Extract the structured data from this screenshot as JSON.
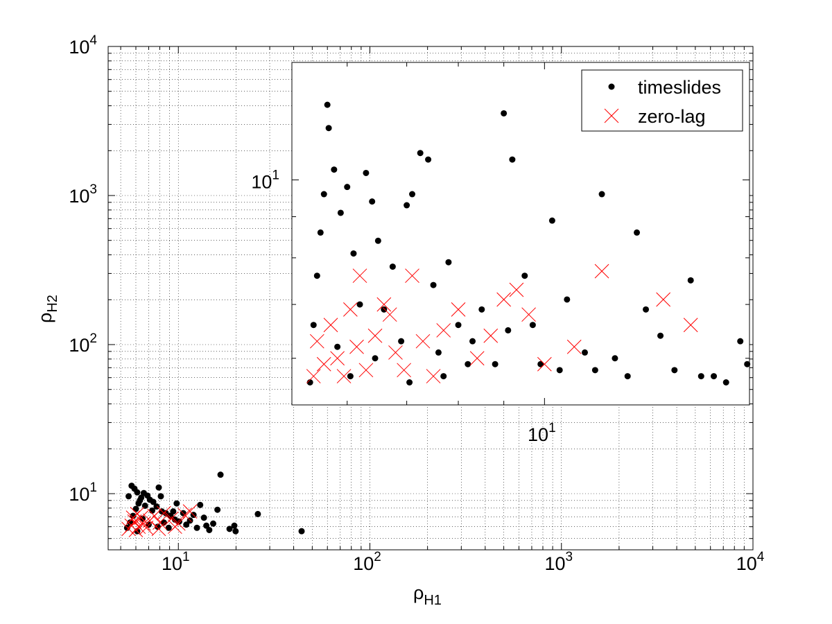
{
  "chart_data": [
    {
      "type": "scatter",
      "title": "",
      "xlabel_base": "ρ",
      "xlabel_sub": "H1",
      "ylabel_base": "ρ",
      "ylabel_sub": "H2",
      "xscale": "log",
      "yscale": "log",
      "xlim": [
        4.3,
        10000
      ],
      "ylim": [
        4.2,
        10000
      ],
      "grid": true,
      "x_ticks": [
        {
          "base": "10",
          "exp": "1",
          "value": 10
        },
        {
          "base": "10",
          "exp": "2",
          "value": 100
        },
        {
          "base": "10",
          "exp": "3",
          "value": 1000
        },
        {
          "base": "10",
          "exp": "4",
          "value": 10000
        }
      ],
      "y_ticks": [
        {
          "base": "10",
          "exp": "1",
          "value": 10
        },
        {
          "base": "10",
          "exp": "2",
          "value": 100
        },
        {
          "base": "10",
          "exp": "3",
          "value": 1000
        },
        {
          "base": "10",
          "exp": "4",
          "value": 10000
        }
      ],
      "series": [
        {
          "name": "timeslides",
          "marker": "dot",
          "color": "#000000",
          "points": [
            [
              5.4,
              5.9
            ],
            [
              5.6,
              6.4
            ],
            [
              5.8,
              7.1
            ],
            [
              6.0,
              7.9
            ],
            [
              6.2,
              8.6
            ],
            [
              6.4,
              9.4
            ],
            [
              6.1,
              10.2
            ],
            [
              5.7,
              11.3
            ],
            [
              5.9,
              10.8
            ],
            [
              6.6,
              10.1
            ],
            [
              6.9,
              9.7
            ],
            [
              7.1,
              9.1
            ],
            [
              7.4,
              8.8
            ],
            [
              7.7,
              8.2
            ],
            [
              7.9,
              11.0
            ],
            [
              8.2,
              7.6
            ],
            [
              8.6,
              7.4
            ],
            [
              9.1,
              7.1
            ],
            [
              9.6,
              6.7
            ],
            [
              10.1,
              6.5
            ],
            [
              11.0,
              6.2
            ],
            [
              12.0,
              7.2
            ],
            [
              13.0,
              8.4
            ],
            [
              14.0,
              6.1
            ],
            [
              15.2,
              6.3
            ],
            [
              16.0,
              7.8
            ],
            [
              16.6,
              13.4
            ],
            [
              18.5,
              5.8
            ],
            [
              19.6,
              6.1
            ],
            [
              19.9,
              5.6
            ],
            [
              26.0,
              7.3
            ],
            [
              44.0,
              5.6
            ],
            [
              6.5,
              6.8
            ],
            [
              7.0,
              6.2
            ],
            [
              7.8,
              6.0
            ],
            [
              8.9,
              5.9
            ],
            [
              9.4,
              7.6
            ],
            [
              10.6,
              7.4
            ],
            [
              12.5,
              5.9
            ],
            [
              14.5,
              5.7
            ],
            [
              5.5,
              9.6
            ],
            [
              6.3,
              9.0
            ],
            [
              6.7,
              8.3
            ],
            [
              7.3,
              7.7
            ],
            [
              8.1,
              9.6
            ],
            [
              9.8,
              8.6
            ],
            [
              11.5,
              6.6
            ],
            [
              13.6,
              6.9
            ],
            [
              6.1,
              5.6
            ],
            [
              8.4,
              6.4
            ]
          ]
        },
        {
          "name": "zero-lag",
          "marker": "x",
          "color": "#ff0000",
          "points": [
            [
              5.5,
              5.8
            ],
            [
              5.7,
              6.1
            ],
            [
              5.9,
              6.5
            ],
            [
              6.0,
              5.7
            ],
            [
              6.2,
              6.0
            ],
            [
              6.4,
              6.9
            ],
            [
              6.6,
              6.3
            ],
            [
              6.8,
              5.9
            ],
            [
              7.1,
              6.6
            ],
            [
              7.5,
              7.1
            ],
            [
              8.0,
              6.4
            ],
            [
              8.4,
              7.4
            ],
            [
              9.2,
              6.8
            ],
            [
              10.0,
              6.3
            ],
            [
              10.8,
              7.2
            ],
            [
              11.5,
              7.6
            ],
            [
              9.6,
              6.0
            ],
            [
              7.9,
              5.8
            ],
            [
              6.1,
              7.3
            ],
            [
              5.8,
              6.9
            ]
          ]
        }
      ],
      "legend": {
        "placement": "top-right",
        "entries": [
          "timeslides",
          "zero-lag"
        ]
      }
    },
    {
      "type": "scatter",
      "role": "inset",
      "xscale": "log",
      "yscale": "log",
      "xlim": [
        5.2,
        17
      ],
      "ylim": [
        5.25,
        14
      ],
      "grid": false,
      "x_ticks": [
        {
          "base": "10",
          "exp": "1",
          "value": 10
        }
      ],
      "y_ticks": [
        {
          "base": "10",
          "exp": "1",
          "value": 10
        }
      ],
      "series": [
        {
          "name": "timeslides",
          "marker": "dot",
          "color": "#000000",
          "points": [
            [
              5.45,
              5.6
            ],
            [
              5.5,
              6.6
            ],
            [
              5.55,
              7.6
            ],
            [
              5.6,
              8.6
            ],
            [
              5.65,
              9.6
            ],
            [
              5.7,
              12.4
            ],
            [
              5.72,
              11.6
            ],
            [
              5.8,
              10.3
            ],
            [
              5.9,
              9.1
            ],
            [
              6.0,
              9.8
            ],
            [
              6.1,
              8.1
            ],
            [
              6.2,
              7.0
            ],
            [
              6.3,
              10.2
            ],
            [
              6.4,
              9.4
            ],
            [
              6.5,
              8.4
            ],
            [
              6.6,
              6.9
            ],
            [
              6.75,
              7.8
            ],
            [
              6.9,
              6.3
            ],
            [
              7.0,
              9.3
            ],
            [
              7.1,
              9.6
            ],
            [
              7.25,
              10.8
            ],
            [
              7.4,
              10.6
            ],
            [
              7.5,
              7.4
            ],
            [
              7.6,
              6.1
            ],
            [
              7.8,
              7.9
            ],
            [
              8.0,
              6.6
            ],
            [
              8.2,
              5.9
            ],
            [
              8.5,
              6.9
            ],
            [
              8.8,
              5.9
            ],
            [
              9.0,
              12.1
            ],
            [
              9.2,
              10.6
            ],
            [
              9.5,
              7.6
            ],
            [
              9.7,
              6.6
            ],
            [
              9.9,
              5.9
            ],
            [
              10.2,
              8.9
            ],
            [
              10.6,
              7.1
            ],
            [
              11.1,
              6.1
            ],
            [
              11.4,
              5.8
            ],
            [
              11.6,
              9.6
            ],
            [
              12.0,
              6.0
            ],
            [
              12.4,
              5.7
            ],
            [
              12.7,
              8.6
            ],
            [
              13.5,
              6.4
            ],
            [
              14.0,
              5.8
            ],
            [
              14.6,
              7.5
            ],
            [
              15.0,
              5.7
            ],
            [
              15.5,
              5.7
            ],
            [
              16.0,
              5.6
            ],
            [
              16.4,
              13.3
            ],
            [
              16.6,
              6.3
            ],
            [
              16.9,
              5.9
            ],
            [
              5.85,
              6.2
            ],
            [
              6.05,
              5.7
            ],
            [
              6.45,
              6.0
            ],
            [
              7.05,
              5.6
            ],
            [
              7.7,
              5.7
            ],
            [
              8.3,
              6.3
            ],
            [
              9.1,
              6.5
            ],
            [
              10.4,
              5.8
            ],
            [
              13.0,
              6.9
            ]
          ]
        },
        {
          "name": "zero-lag",
          "marker": "x",
          "color": "#ff0000",
          "points": [
            [
              5.5,
              5.7
            ],
            [
              5.55,
              6.3
            ],
            [
              5.65,
              5.9
            ],
            [
              5.75,
              6.6
            ],
            [
              5.85,
              6.0
            ],
            [
              5.95,
              5.7
            ],
            [
              6.05,
              6.9
            ],
            [
              6.15,
              6.2
            ],
            [
              6.3,
              5.8
            ],
            [
              6.45,
              6.4
            ],
            [
              6.6,
              7.0
            ],
            [
              6.8,
              6.1
            ],
            [
              6.95,
              5.8
            ],
            [
              7.1,
              7.6
            ],
            [
              7.3,
              6.3
            ],
            [
              7.5,
              5.7
            ],
            [
              7.7,
              6.5
            ],
            [
              8.0,
              6.9
            ],
            [
              8.4,
              6.0
            ],
            [
              8.7,
              6.4
            ],
            [
              9.0,
              7.1
            ],
            [
              9.3,
              7.3
            ],
            [
              9.6,
              6.8
            ],
            [
              10.0,
              5.9
            ],
            [
              10.8,
              6.2
            ],
            [
              11.6,
              7.7
            ],
            [
              13.6,
              7.1
            ],
            [
              14.6,
              6.6
            ],
            [
              6.2,
              7.6
            ],
            [
              6.7,
              6.8
            ]
          ]
        }
      ]
    }
  ]
}
